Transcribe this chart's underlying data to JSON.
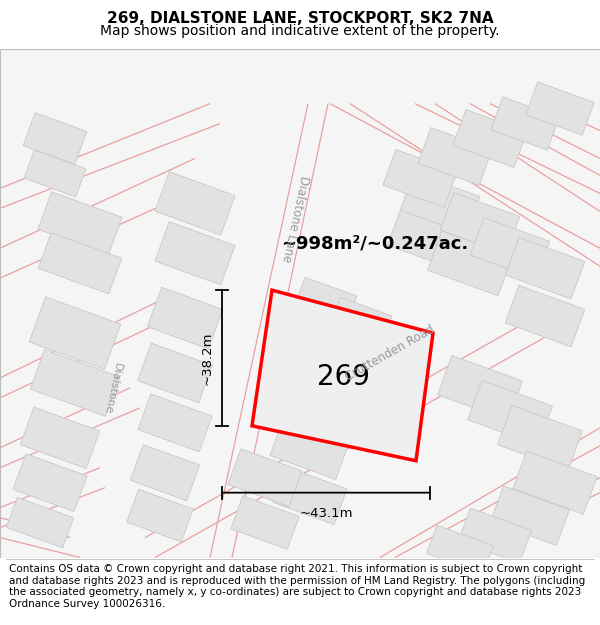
{
  "title": "269, DIALSTONE LANE, STOCKPORT, SK2 7NA",
  "subtitle": "Map shows position and indicative extent of the property.",
  "footer_text": "Contains OS data © Crown copyright and database right 2021. This information is subject to Crown copyright and database rights 2023 and is reproduced with the permission of HM Land Registry. The polygons (including the associated geometry, namely x, y co-ordinates) are subject to Crown copyright and database rights 2023 Ordnance Survey 100026316.",
  "map_bg": "#f5f5f5",
  "building_fill": "#e2e2e2",
  "building_edge": "#c8c8c8",
  "road_line_color": "#e8a0a0",
  "highlight_fill": "#efefef",
  "highlight_edge": "#ff0000",
  "highlight_lw": 2.5,
  "area_text": "~998m²/~0.247ac.",
  "label_269": "269",
  "dim_width": "~43.1m",
  "dim_height": "~38.2m",
  "street_label_dialstone_lane": "Dialstone Lane",
  "street_label_cruttenden": "Cruttenden Road",
  "street_label_dialstone_left": "Dialstone",
  "title_fontsize": 11,
  "subtitle_fontsize": 10,
  "footer_fontsize": 7.5
}
